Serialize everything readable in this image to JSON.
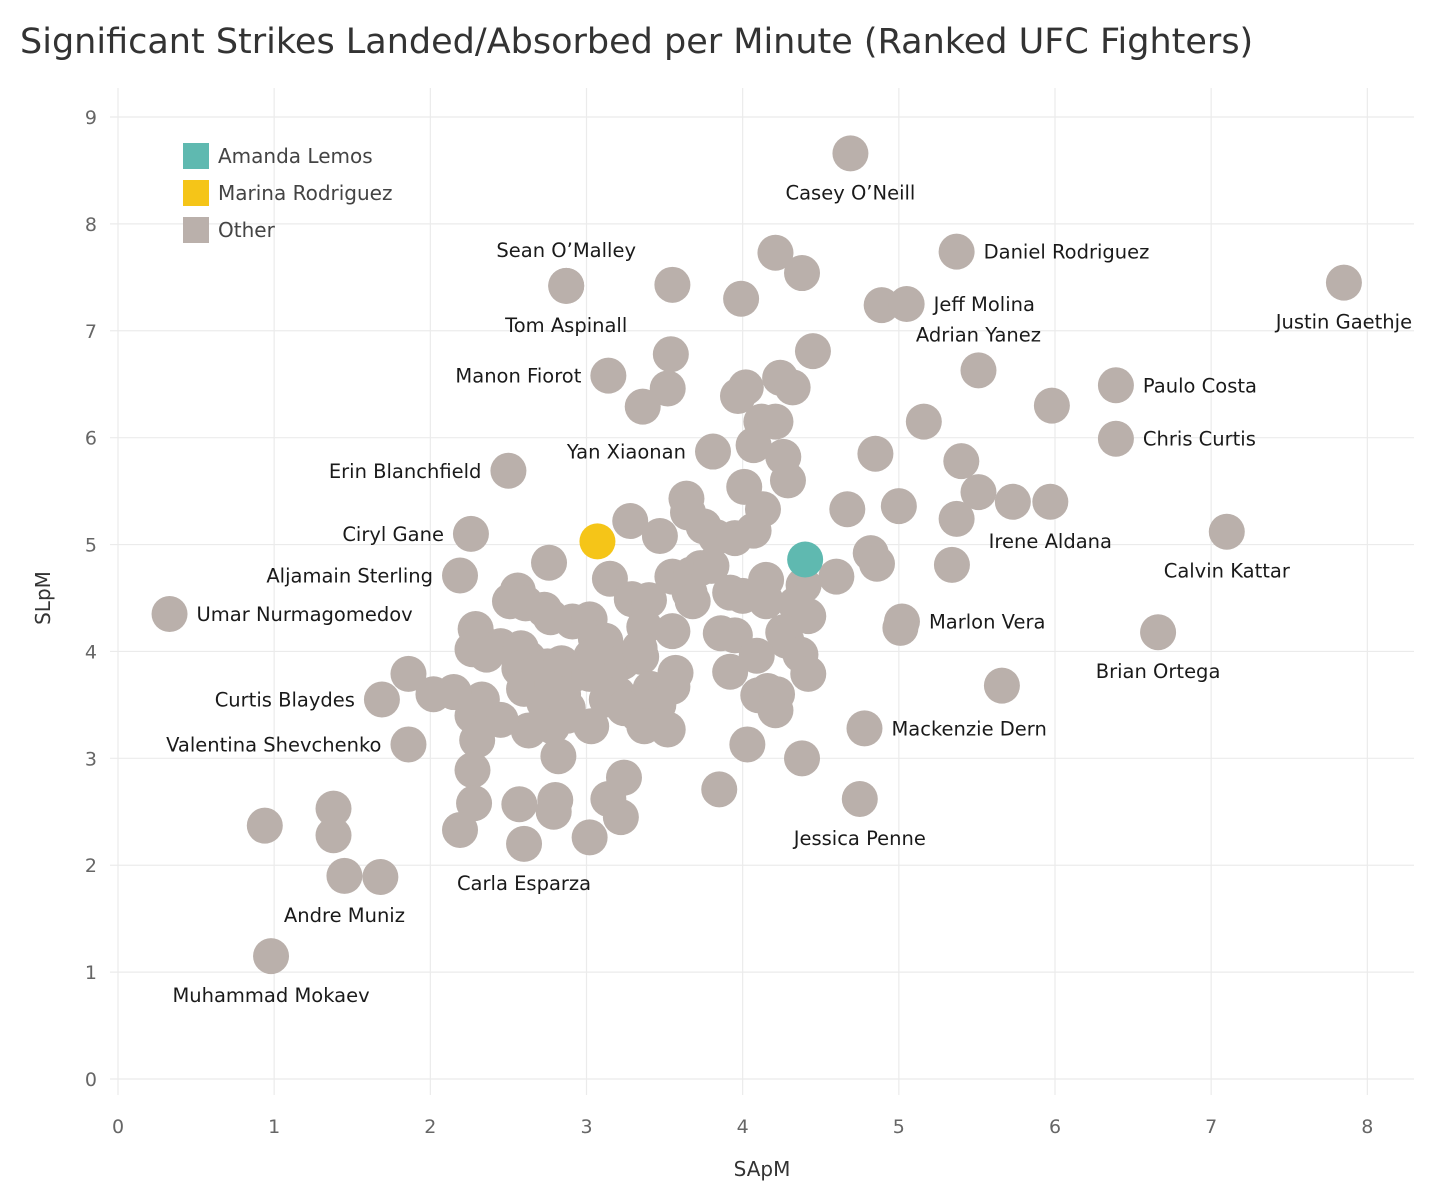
{
  "chart_data": {
    "type": "scatter",
    "title": "Significant Strikes Landed/Absorbed per Minute (Ranked UFC Fighters)",
    "xlabel": "SApM",
    "ylabel": "SLpM",
    "xlim": [
      0,
      8.35
    ],
    "ylim": [
      0,
      9.2
    ],
    "xticks": [
      "0",
      "1",
      "2",
      "3",
      "4",
      "5",
      "6",
      "7",
      "8"
    ],
    "yticks": [
      "0",
      "1",
      "2",
      "3",
      "4",
      "5",
      "6",
      "7",
      "8",
      "9"
    ],
    "grid": true,
    "legend_position": "top-left",
    "colors": {
      "Amanda Lemos": "#5fb9b0",
      "Marina Rodriguez": "#f5c518",
      "Other": "#bab0ab"
    },
    "legend": [
      "Amanda Lemos",
      "Marina Rodriguez",
      "Other"
    ],
    "highlights": [
      {
        "name": "Amanda Lemos",
        "x": 4.4,
        "y": 4.86
      },
      {
        "name": "Marina Rodriguez",
        "x": 3.07,
        "y": 5.03
      }
    ],
    "labeled_points": [
      {
        "name": "Casey O’Neill",
        "x": 4.69,
        "y": 8.66,
        "pos": "below"
      },
      {
        "name": "Daniel Rodriguez",
        "x": 5.37,
        "y": 7.74,
        "pos": "right"
      },
      {
        "name": "Sean O’Malley",
        "x": 2.87,
        "y": 7.42,
        "pos": "above"
      },
      {
        "name": "Justin Gaethje",
        "x": 7.85,
        "y": 7.45,
        "pos": "below"
      },
      {
        "name": "Jeff Molina",
        "x": 5.05,
        "y": 7.25,
        "pos": "right"
      },
      {
        "name": "Tom Aspinall",
        "x": 2.87,
        "y": 7.42,
        "pos": "below"
      },
      {
        "name": "Adrian Yanez",
        "x": 5.51,
        "y": 6.63,
        "pos": "above"
      },
      {
        "name": "Manon Fiorot",
        "x": 3.14,
        "y": 6.58,
        "pos": "left"
      },
      {
        "name": "Paulo Costa",
        "x": 6.39,
        "y": 6.49,
        "pos": "right"
      },
      {
        "name": "Chris Curtis",
        "x": 6.39,
        "y": 5.99,
        "pos": "right"
      },
      {
        "name": "Yan Xiaonan",
        "x": 3.81,
        "y": 5.87,
        "pos": "left"
      },
      {
        "name": "Erin Blanchfield",
        "x": 2.5,
        "y": 5.69,
        "pos": "left"
      },
      {
        "name": "Ciryl Gane",
        "x": 2.26,
        "y": 5.1,
        "pos": "left"
      },
      {
        "name": "Irene Aldana",
        "x": 5.97,
        "y": 5.4,
        "pos": "below"
      },
      {
        "name": "Calvin Kattar",
        "x": 7.1,
        "y": 5.12,
        "pos": "below"
      },
      {
        "name": "Aljamain Sterling",
        "x": 2.19,
        "y": 4.71,
        "pos": "left"
      },
      {
        "name": "Umar Nurmagomedov",
        "x": 0.33,
        "y": 4.35,
        "pos": "right"
      },
      {
        "name": "Marlon Vera",
        "x": 5.02,
        "y": 4.28,
        "pos": "right"
      },
      {
        "name": "Brian Ortega",
        "x": 6.66,
        "y": 4.18,
        "pos": "below"
      },
      {
        "name": "Curtis Blaydes",
        "x": 1.69,
        "y": 3.55,
        "pos": "left"
      },
      {
        "name": "Valentina Shevchenko",
        "x": 1.86,
        "y": 3.13,
        "pos": "left"
      },
      {
        "name": "Mackenzie Dern",
        "x": 4.78,
        "y": 3.28,
        "pos": "right"
      },
      {
        "name": "Jessica Penne",
        "x": 4.75,
        "y": 2.62,
        "pos": "below"
      },
      {
        "name": "Carla Esparza",
        "x": 2.6,
        "y": 2.2,
        "pos": "below"
      },
      {
        "name": "Andre Muniz",
        "x": 1.45,
        "y": 1.9,
        "pos": "below"
      },
      {
        "name": "Muhammad Mokaev",
        "x": 0.98,
        "y": 1.15,
        "pos": "below"
      }
    ],
    "other_points": [
      [
        3.55,
        7.43
      ],
      [
        4.21,
        7.73
      ],
      [
        4.38,
        7.54
      ],
      [
        3.99,
        7.3
      ],
      [
        4.89,
        7.24
      ],
      [
        3.54,
        6.78
      ],
      [
        4.45,
        6.81
      ],
      [
        4.24,
        6.56
      ],
      [
        4.02,
        6.47
      ],
      [
        4.32,
        6.47
      ],
      [
        3.97,
        6.39
      ],
      [
        3.52,
        6.46
      ],
      [
        3.36,
        6.29
      ],
      [
        4.12,
        6.15
      ],
      [
        4.21,
        6.15
      ],
      [
        5.16,
        6.15
      ],
      [
        5.98,
        6.3
      ],
      [
        4.07,
        5.93
      ],
      [
        4.26,
        5.82
      ],
      [
        4.29,
        5.6
      ],
      [
        4.85,
        5.85
      ],
      [
        5.4,
        5.78
      ],
      [
        5.51,
        5.49
      ],
      [
        5.73,
        5.4
      ],
      [
        5.37,
        5.24
      ],
      [
        4.67,
        5.33
      ],
      [
        5.0,
        5.36
      ],
      [
        4.01,
        5.54
      ],
      [
        3.64,
        5.43
      ],
      [
        3.65,
        5.3
      ],
      [
        4.13,
        5.33
      ],
      [
        3.28,
        5.22
      ],
      [
        3.47,
        5.08
      ],
      [
        3.75,
        5.17
      ],
      [
        3.83,
        5.07
      ],
      [
        3.95,
        5.06
      ],
      [
        4.07,
        5.13
      ],
      [
        4.82,
        4.92
      ],
      [
        4.86,
        4.82
      ],
      [
        5.34,
        4.81
      ],
      [
        4.6,
        4.7
      ],
      [
        4.39,
        4.62
      ],
      [
        4.42,
        4.33
      ],
      [
        2.76,
        4.83
      ],
      [
        3.15,
        4.68
      ],
      [
        3.29,
        4.49
      ],
      [
        3.4,
        4.48
      ],
      [
        3.55,
        4.7
      ],
      [
        3.67,
        4.72
      ],
      [
        3.73,
        4.78
      ],
      [
        3.8,
        4.8
      ],
      [
        3.66,
        4.55
      ],
      [
        3.68,
        4.47
      ],
      [
        3.92,
        4.55
      ],
      [
        4.0,
        4.52
      ],
      [
        4.15,
        4.67
      ],
      [
        4.15,
        4.47
      ],
      [
        4.34,
        4.44
      ],
      [
        2.56,
        4.57
      ],
      [
        2.51,
        4.47
      ],
      [
        2.61,
        4.45
      ],
      [
        2.73,
        4.39
      ],
      [
        2.77,
        4.32
      ],
      [
        2.91,
        4.28
      ],
      [
        3.02,
        4.3
      ],
      [
        3.06,
        4.12
      ],
      [
        3.12,
        4.1
      ],
      [
        3.37,
        4.23
      ],
      [
        3.55,
        4.19
      ],
      [
        3.86,
        4.17
      ],
      [
        3.95,
        4.15
      ],
      [
        4.26,
        4.18
      ],
      [
        4.28,
        4.1
      ],
      [
        4.37,
        3.97
      ],
      [
        4.09,
        3.96
      ],
      [
        3.92,
        3.81
      ],
      [
        4.42,
        3.79
      ],
      [
        4.16,
        3.63
      ],
      [
        4.1,
        3.59
      ],
      [
        4.22,
        3.6
      ],
      [
        4.21,
        3.45
      ],
      [
        2.29,
        4.21
      ],
      [
        2.34,
        4.07
      ],
      [
        2.45,
        4.05
      ],
      [
        2.27,
        4.02
      ],
      [
        2.36,
        3.97
      ],
      [
        2.58,
        4.03
      ],
      [
        2.63,
        3.93
      ],
      [
        2.57,
        3.84
      ],
      [
        2.64,
        3.77
      ],
      [
        2.6,
        3.65
      ],
      [
        2.75,
        3.86
      ],
      [
        2.84,
        3.89
      ],
      [
        2.78,
        3.7
      ],
      [
        2.91,
        3.78
      ],
      [
        2.85,
        3.6
      ],
      [
        2.73,
        3.52
      ],
      [
        2.88,
        3.47
      ],
      [
        3.02,
        3.79
      ],
      [
        3.03,
        3.95
      ],
      [
        3.12,
        3.8
      ],
      [
        3.23,
        3.9
      ],
      [
        3.35,
        3.95
      ],
      [
        3.34,
        4.03
      ],
      [
        3.41,
        3.65
      ],
      [
        3.55,
        3.67
      ],
      [
        3.57,
        3.8
      ],
      [
        3.2,
        3.6
      ],
      [
        3.13,
        3.55
      ],
      [
        3.24,
        3.47
      ],
      [
        3.33,
        3.41
      ],
      [
        3.46,
        3.5
      ],
      [
        3.37,
        3.3
      ],
      [
        3.52,
        3.27
      ],
      [
        3.03,
        3.3
      ],
      [
        2.88,
        3.4
      ],
      [
        2.78,
        3.3
      ],
      [
        2.63,
        3.26
      ],
      [
        2.45,
        3.36
      ],
      [
        2.33,
        3.45
      ],
      [
        2.27,
        3.4
      ],
      [
        2.33,
        3.55
      ],
      [
        2.3,
        3.17
      ],
      [
        2.82,
        3.02
      ],
      [
        2.15,
        3.62
      ],
      [
        2.02,
        3.6
      ],
      [
        1.86,
        3.79
      ],
      [
        2.27,
        2.89
      ],
      [
        2.28,
        2.58
      ],
      [
        2.57,
        2.57
      ],
      [
        2.8,
        2.61
      ],
      [
        2.79,
        2.5
      ],
      [
        3.14,
        2.62
      ],
      [
        3.24,
        2.82
      ],
      [
        3.22,
        2.45
      ],
      [
        3.02,
        2.26
      ],
      [
        2.19,
        2.33
      ],
      [
        4.03,
        3.13
      ],
      [
        4.38,
        3.0
      ],
      [
        3.85,
        2.71
      ],
      [
        5.66,
        3.68
      ],
      [
        5.01,
        4.22
      ],
      [
        0.94,
        2.37
      ],
      [
        1.38,
        2.53
      ],
      [
        1.38,
        2.28
      ],
      [
        1.68,
        1.89
      ]
    ]
  }
}
